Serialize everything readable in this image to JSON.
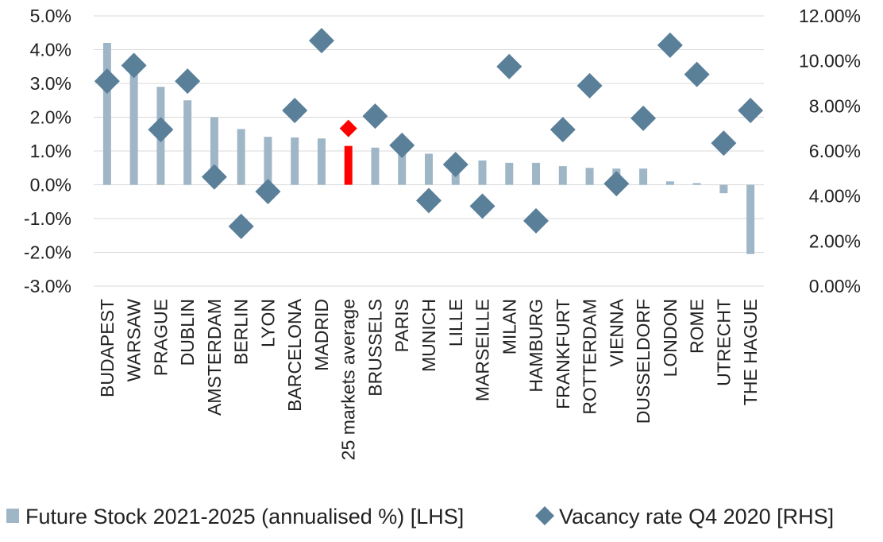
{
  "chart_data": {
    "type": "bar",
    "categories": [
      "BUDAPEST",
      "WARSAW",
      "PRAGUE",
      "DUBLIN",
      "AMSTERDAM",
      "BERLIN",
      "LYON",
      "BARCELONA",
      "MADRID",
      "25 markets average",
      "BRUSSELS",
      "PARIS",
      "MUNICH",
      "LILLE",
      "MARSEILLE",
      "MILAN",
      "HAMBURG",
      "FRANKFURT",
      "ROTTERDAM",
      "VIENNA",
      "DUSSELDORF",
      "LONDON",
      "ROME",
      "UTRECHT",
      "THE HAGUE"
    ],
    "highlight_category": "25 markets average",
    "series": [
      {
        "name": "Future Stock 2021-2025 (annualised %) [LHS]",
        "type": "bar",
        "axis": "left",
        "color": "#9fb6c7",
        "highlight_color": "#ff0000",
        "values": [
          4.2,
          3.7,
          2.9,
          2.5,
          2.0,
          1.65,
          1.42,
          1.4,
          1.37,
          1.15,
          1.1,
          1.07,
          0.92,
          0.78,
          0.72,
          0.65,
          0.65,
          0.55,
          0.5,
          0.48,
          0.48,
          0.1,
          0.05,
          -0.25,
          -2.05
        ]
      },
      {
        "name": "Vacancy rate Q4 2020 [RHS]",
        "type": "scatter",
        "marker": "diamond",
        "axis": "right",
        "color": "#5a7f99",
        "highlight_color": "#ff0000",
        "values": [
          9.1,
          9.8,
          6.95,
          9.1,
          4.85,
          2.65,
          4.2,
          7.8,
          10.9,
          7.0,
          7.55,
          6.25,
          3.8,
          5.4,
          3.55,
          9.75,
          2.9,
          6.95,
          8.9,
          4.55,
          7.45,
          10.7,
          9.4,
          6.35,
          7.8
        ]
      }
    ],
    "y_left": {
      "ylim": [
        -3.0,
        5.0
      ],
      "ticks": [
        5.0,
        4.0,
        3.0,
        2.0,
        1.0,
        0.0,
        -1.0,
        -2.0,
        -3.0
      ],
      "tick_labels": [
        "5.0%",
        "4.0%",
        "3.0%",
        "2.0%",
        "1.0%",
        "0.0%",
        "-1.0%",
        "-2.0%",
        "-3.0%"
      ]
    },
    "y_right": {
      "ylim": [
        0.0,
        12.0
      ],
      "ticks": [
        12.0,
        10.0,
        8.0,
        6.0,
        4.0,
        2.0,
        0.0
      ],
      "tick_labels": [
        "12.00%",
        "10.00%",
        "8.00%",
        "6.00%",
        "4.00%",
        "2.00%",
        "0.00%"
      ]
    },
    "grid": true,
    "legend_position": "bottom",
    "legend": [
      {
        "label": "Future Stock 2021-2025 (annualised %) [LHS]",
        "marker": "square",
        "color": "#9fb6c7"
      },
      {
        "label": "Vacancy rate Q4 2020 [RHS]",
        "marker": "diamond",
        "color": "#5a7f99"
      }
    ]
  }
}
